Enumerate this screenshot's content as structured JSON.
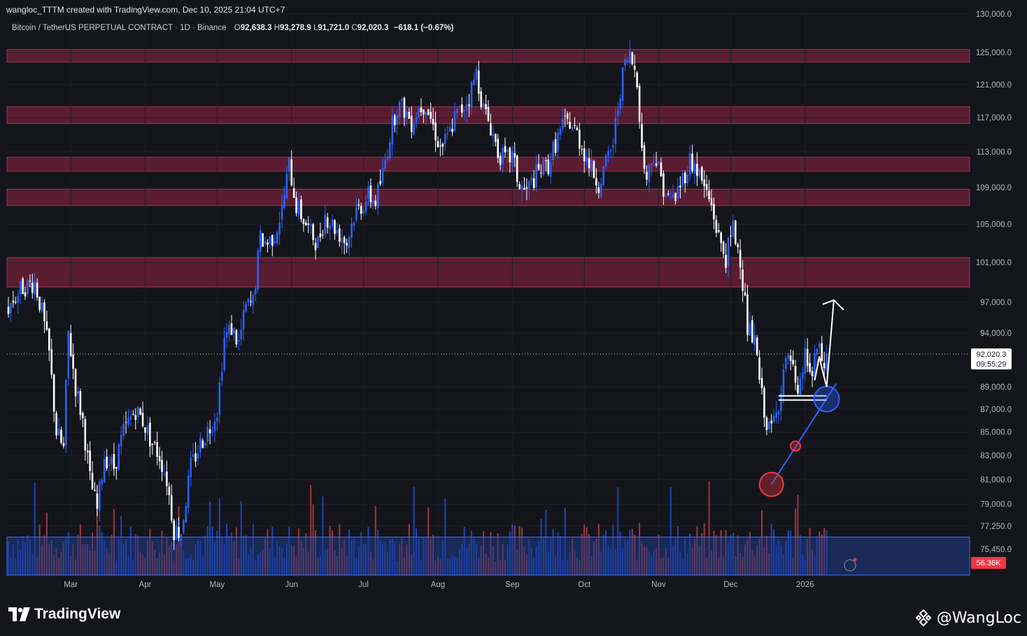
{
  "header": {
    "credit": "wangloc_TTTM created with TradingView.com, Dec 10, 2025 21:04 UTC+7",
    "symbol": "Bitcoin / TetherUS PERPETUAL CONTRACT · 1D · Binance",
    "ohlc": {
      "o_label": "O",
      "o": "92,638.3",
      "h_label": "H",
      "h": "93,278.9",
      "l_label": "L",
      "l": "91,721.0",
      "c_label": "C",
      "c": "92,020.3",
      "change": "−618.1 (−0.67%)"
    }
  },
  "footer": {
    "brand": "TradingView",
    "author": "@WangLoc"
  },
  "chart_data": {
    "type": "candlestick",
    "title": "",
    "x_axis": {
      "tick_labels": [
        "Mar",
        "Apr",
        "May",
        "Jun",
        "Jul",
        "Aug",
        "Sep",
        "Oct",
        "Nov",
        "Dec",
        "2026"
      ]
    },
    "y_axis": {
      "scale": "log",
      "range": [
        73500,
        130000
      ],
      "tick_labels": [
        "130,000.0",
        "125,000.0",
        "121,000.0",
        "117,000.0",
        "113,000.0",
        "109,000.0",
        "105,000.0",
        "101,000.0",
        "97,000.0",
        "94,000.0",
        "89,000.0",
        "87,000.0",
        "85,000.0",
        "83,000.0",
        "81,000.0",
        "79,000.0",
        "77,250.0",
        "75,450.0"
      ]
    },
    "last_price": {
      "value": "92,020.3",
      "countdown": "09:55:29"
    },
    "volume_label": "56.36K",
    "resistance_zones": [
      [
        123800,
        125400
      ],
      [
        116300,
        118300
      ],
      [
        110800,
        112400
      ],
      [
        107000,
        108800
      ],
      [
        98500,
        101500
      ]
    ],
    "demand_zone": [
      73500,
      76400
    ],
    "close_path": [
      [
        0,
        96500
      ],
      [
        6,
        98500
      ],
      [
        11,
        99000
      ],
      [
        14,
        96000
      ],
      [
        17,
        92000
      ],
      [
        20,
        85000
      ],
      [
        23,
        83500
      ],
      [
        25,
        94000
      ],
      [
        28,
        89000
      ],
      [
        31,
        86000
      ],
      [
        34,
        81000
      ],
      [
        37,
        78500
      ],
      [
        40,
        83000
      ],
      [
        44,
        82000
      ],
      [
        48,
        85000
      ],
      [
        53,
        87000
      ],
      [
        56,
        86000
      ],
      [
        60,
        84000
      ],
      [
        63,
        83000
      ],
      [
        66,
        81000
      ],
      [
        69,
        77000
      ],
      [
        72,
        76800
      ],
      [
        76,
        82000
      ],
      [
        80,
        84000
      ],
      [
        84,
        85500
      ],
      [
        87,
        87000
      ],
      [
        90,
        93500
      ],
      [
        93,
        94500
      ],
      [
        96,
        93000
      ],
      [
        99,
        96500
      ],
      [
        102,
        97000
      ],
      [
        105,
        103500
      ],
      [
        108,
        103000
      ],
      [
        111,
        104000
      ],
      [
        114,
        106500
      ],
      [
        117,
        111500
      ],
      [
        120,
        107000
      ],
      [
        123,
        105500
      ],
      [
        126,
        104000
      ],
      [
        129,
        103000
      ],
      [
        132,
        106000
      ],
      [
        135,
        105000
      ],
      [
        138,
        104000
      ],
      [
        141,
        103000
      ],
      [
        144,
        106000
      ],
      [
        147,
        107000
      ],
      [
        150,
        108000
      ],
      [
        153,
        107500
      ],
      [
        156,
        110500
      ],
      [
        159,
        115000
      ],
      [
        162,
        118500
      ],
      [
        165,
        118000
      ],
      [
        168,
        116500
      ],
      [
        171,
        118200
      ],
      [
        174,
        118700
      ],
      [
        177,
        116000
      ],
      [
        180,
        113500
      ],
      [
        183,
        114500
      ],
      [
        186,
        117000
      ],
      [
        189,
        118000
      ],
      [
        192,
        119500
      ],
      [
        195,
        122500
      ],
      [
        198,
        118000
      ],
      [
        201,
        116000
      ],
      [
        204,
        113000
      ],
      [
        207,
        112000
      ],
      [
        210,
        112500
      ],
      [
        213,
        109000
      ],
      [
        216,
        108500
      ],
      [
        219,
        110000
      ],
      [
        222,
        111000
      ],
      [
        225,
        111500
      ],
      [
        228,
        114000
      ],
      [
        231,
        116000
      ],
      [
        234,
        116500
      ],
      [
        237,
        115000
      ],
      [
        240,
        113000
      ],
      [
        243,
        111000
      ],
      [
        246,
        109500
      ],
      [
        249,
        111500
      ],
      [
        252,
        114000
      ],
      [
        255,
        120500
      ],
      [
        257,
        123500
      ],
      [
        259,
        124500
      ],
      [
        262,
        122000
      ],
      [
        264,
        113000
      ],
      [
        266,
        110000
      ],
      [
        269,
        113000
      ],
      [
        272,
        110000
      ],
      [
        275,
        107500
      ],
      [
        278,
        108000
      ],
      [
        281,
        110000
      ],
      [
        284,
        112000
      ],
      [
        287,
        111000
      ],
      [
        290,
        109000
      ],
      [
        293,
        107000
      ],
      [
        296,
        103500
      ],
      [
        299,
        101500
      ],
      [
        302,
        104500
      ],
      [
        305,
        101500
      ],
      [
        308,
        94500
      ],
      [
        311,
        93000
      ],
      [
        314,
        88000
      ],
      [
        317,
        85000
      ],
      [
        320,
        86500
      ],
      [
        323,
        90500
      ],
      [
        326,
        91500
      ],
      [
        329,
        87500
      ],
      [
        332,
        92000
      ],
      [
        335,
        89800
      ],
      [
        337,
        92500
      ],
      [
        340,
        91000
      ],
      [
        341,
        92020
      ]
    ],
    "annotations": {
      "trendline": [
        [
          318,
          80600
        ],
        [
          345,
          89300
        ]
      ],
      "marked_lows": [
        {
          "x": 318,
          "value": 80600,
          "color": "#f23645"
        },
        {
          "x": 328,
          "value": 83800,
          "color": "#f23645"
        },
        {
          "x": 341,
          "value": 87900,
          "color": "#2962ff"
        }
      ],
      "horizontal_level": {
        "from": 321,
        "to": 341,
        "value": 88000
      },
      "projection": [
        [
          336,
          89600
        ],
        [
          338,
          91800
        ],
        [
          339,
          90700
        ],
        [
          341,
          89000
        ],
        [
          344,
          97200
        ]
      ]
    },
    "colors": {
      "up": "#2962ff",
      "down": "#ffffff",
      "zone": "#6a1f36",
      "demand": "#1e3a8a",
      "marker": "#f23645",
      "background": "#14151b"
    }
  }
}
